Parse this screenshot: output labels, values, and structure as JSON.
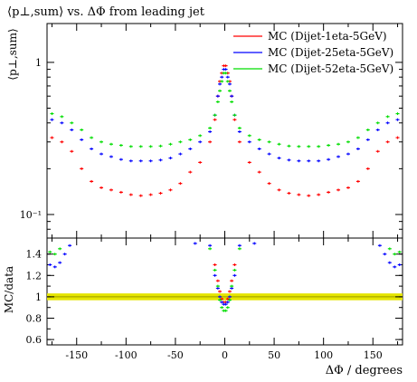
{
  "chart_data": [
    {
      "type": "scatter",
      "title": "⟨p⊥,sum⟩ vs. ΔΦ from leading jet",
      "ylabel": "⟨p⊥,sum⟩",
      "xlabel": "",
      "xlim": [
        -180,
        180
      ],
      "ylim": [
        0.07,
        1.8
      ],
      "yscale": "log",
      "yticks": [
        {
          "value": 1,
          "label": "1"
        },
        {
          "value": 0.1,
          "label": "10⁻¹"
        }
      ],
      "legend_position": "top-right",
      "series": [
        {
          "name": "MC (Dijet-1eta-5GeV)",
          "color": "#ff0000",
          "x": [
            -175,
            -165,
            -155,
            -145,
            -135,
            -125,
            -115,
            -105,
            -95,
            -85,
            -75,
            -65,
            -55,
            -45,
            -35,
            -25,
            -15,
            -10,
            -7,
            -5,
            -3,
            -1,
            1,
            3,
            5,
            7,
            10,
            15,
            25,
            35,
            45,
            55,
            65,
            75,
            85,
            95,
            105,
            115,
            125,
            135,
            145,
            155,
            165,
            175
          ],
          "y": [
            0.32,
            0.3,
            0.26,
            0.2,
            0.165,
            0.15,
            0.145,
            0.14,
            0.135,
            0.133,
            0.135,
            0.138,
            0.145,
            0.16,
            0.19,
            0.22,
            0.3,
            0.42,
            0.6,
            0.75,
            0.85,
            0.95,
            0.95,
            0.85,
            0.75,
            0.6,
            0.42,
            0.3,
            0.22,
            0.19,
            0.16,
            0.145,
            0.138,
            0.135,
            0.133,
            0.135,
            0.14,
            0.145,
            0.15,
            0.165,
            0.2,
            0.26,
            0.3,
            0.32
          ]
        },
        {
          "name": "MC (Dijet-25eta-5GeV)",
          "color": "#0000ff",
          "x": [
            -175,
            -165,
            -155,
            -145,
            -135,
            -125,
            -115,
            -105,
            -95,
            -85,
            -75,
            -65,
            -55,
            -45,
            -35,
            -25,
            -15,
            -10,
            -7,
            -5,
            -3,
            -1,
            1,
            3,
            5,
            7,
            10,
            15,
            25,
            35,
            45,
            55,
            65,
            75,
            85,
            95,
            105,
            115,
            125,
            135,
            145,
            155,
            165,
            175
          ],
          "y": [
            0.42,
            0.4,
            0.36,
            0.31,
            0.27,
            0.25,
            0.24,
            0.23,
            0.225,
            0.225,
            0.225,
            0.228,
            0.235,
            0.25,
            0.27,
            0.3,
            0.35,
            0.45,
            0.6,
            0.72,
            0.8,
            0.9,
            0.9,
            0.8,
            0.72,
            0.6,
            0.45,
            0.35,
            0.3,
            0.27,
            0.25,
            0.235,
            0.228,
            0.225,
            0.225,
            0.225,
            0.23,
            0.24,
            0.25,
            0.27,
            0.31,
            0.36,
            0.4,
            0.42
          ]
        },
        {
          "name": "MC (Dijet-52eta-5GeV)",
          "color": "#00dd00",
          "x": [
            -175,
            -165,
            -155,
            -145,
            -135,
            -125,
            -115,
            -105,
            -95,
            -85,
            -75,
            -65,
            -55,
            -45,
            -35,
            -25,
            -15,
            -10,
            -7,
            -5,
            -3,
            -1,
            1,
            3,
            5,
            7,
            10,
            15,
            25,
            35,
            45,
            55,
            65,
            75,
            85,
            95,
            105,
            115,
            125,
            135,
            145,
            155,
            165,
            175
          ],
          "y": [
            0.46,
            0.44,
            0.4,
            0.36,
            0.32,
            0.3,
            0.29,
            0.285,
            0.28,
            0.28,
            0.28,
            0.282,
            0.29,
            0.3,
            0.31,
            0.33,
            0.37,
            0.45,
            0.55,
            0.65,
            0.75,
            0.85,
            0.85,
            0.75,
            0.65,
            0.55,
            0.45,
            0.37,
            0.33,
            0.31,
            0.3,
            0.29,
            0.282,
            0.28,
            0.28,
            0.28,
            0.285,
            0.29,
            0.3,
            0.32,
            0.36,
            0.4,
            0.44,
            0.46
          ]
        }
      ]
    },
    {
      "type": "scatter",
      "title": "",
      "ylabel": "MC/data",
      "xlabel": "ΔΦ / degrees",
      "xlim": [
        -180,
        180
      ],
      "ylim": [
        0.55,
        1.55
      ],
      "xticks": [
        -150,
        -100,
        -50,
        0,
        50,
        100,
        150
      ],
      "yticks": [
        0.6,
        0.8,
        1,
        1.2,
        1.4
      ],
      "reference_band": {
        "center": 1.0,
        "low": 0.985,
        "high": 1.015,
        "color": "#e5e500"
      },
      "series": [
        {
          "name": "MC (Dijet-1eta-5GeV)",
          "color": "#ff0000",
          "x": [
            -10,
            -7,
            -5,
            -3,
            -1,
            1,
            3,
            5,
            7,
            10
          ],
          "y": [
            1.3,
            1.15,
            1.05,
            0.98,
            0.95,
            0.95,
            0.98,
            1.05,
            1.15,
            1.3
          ]
        },
        {
          "name": "MC (Dijet-25eta-5GeV)",
          "color": "#0000ff",
          "x": [
            -177,
            -172,
            -167,
            -162,
            -157,
            -30,
            -15,
            -10,
            -7,
            -5,
            -3,
            -1,
            1,
            3,
            5,
            7,
            10,
            15,
            30,
            157,
            162,
            167,
            172,
            177
          ],
          "y": [
            1.3,
            1.28,
            1.32,
            1.4,
            1.48,
            1.5,
            1.48,
            1.2,
            1.08,
            1.0,
            0.95,
            0.93,
            0.93,
            0.95,
            1.0,
            1.08,
            1.2,
            1.48,
            1.5,
            1.48,
            1.4,
            1.32,
            1.28,
            1.3
          ]
        },
        {
          "name": "MC (Dijet-52eta-5GeV)",
          "color": "#00dd00",
          "x": [
            -177,
            -172,
            -167,
            -15,
            -10,
            -7,
            -5,
            -3,
            -1,
            1,
            3,
            5,
            7,
            10,
            15,
            167,
            172,
            177
          ],
          "y": [
            1.42,
            1.4,
            1.45,
            1.45,
            1.25,
            1.1,
            0.97,
            0.9,
            0.87,
            0.87,
            0.9,
            0.97,
            1.1,
            1.25,
            1.45,
            1.45,
            1.4,
            1.42
          ]
        }
      ]
    }
  ]
}
